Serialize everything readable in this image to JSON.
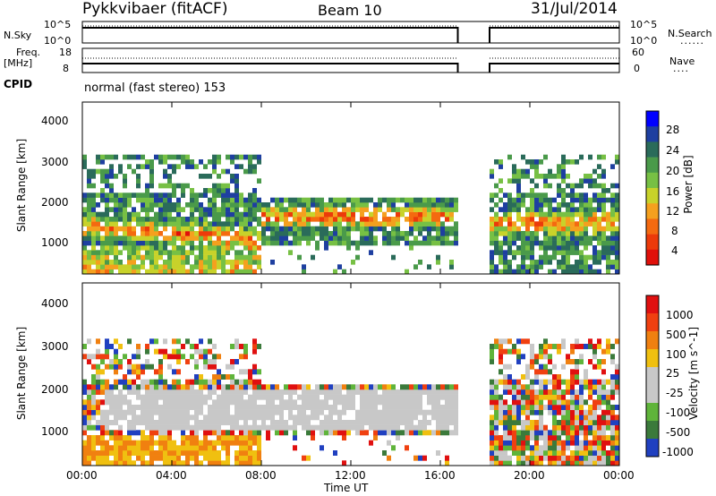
{
  "header": {
    "station": "Pykkvibaer (fitACF)",
    "beam": "Beam 10",
    "date": "31/Jul/2014"
  },
  "strip_labels": {
    "nsky": "N.Sky",
    "nsky_ticks": [
      "10^5",
      "10^0"
    ],
    "nsearch": "N.Search",
    "nsearch_ticks": [
      "10^5",
      "10^0"
    ],
    "freq_line1": "Freq.",
    "freq_line2": "[MHz]",
    "freq_ticks": [
      "18",
      "8"
    ],
    "nave": "Nave",
    "nave_ticks": [
      "60",
      "0"
    ],
    "cpid": "CPID",
    "cpid_value": "normal (fast stereo) 153"
  },
  "colors": {
    "power_scale": [
      "#0000ff",
      "#1e3fa0",
      "#2a6b5a",
      "#4a9a4a",
      "#77c044",
      "#c8d22a",
      "#f5a01e",
      "#f46a10",
      "#ec3a0a",
      "#e0100a"
    ],
    "velocity_scale": [
      "#2040c0",
      "#3b7a3b",
      "#5fb43a",
      "#c8c8c8",
      "#c8c8c8",
      "#f0c010",
      "#f08010",
      "#f04010",
      "#e01010"
    ]
  },
  "chart_data": [
    {
      "type": "heatmap",
      "name": "power",
      "ylabel": "Slant Range [km]",
      "colorbar_label": "Power [dB]",
      "colorbar_ticks": [
        "28",
        "24",
        "20",
        "16",
        "12",
        "8",
        "4"
      ],
      "ylim": [
        180,
        4600
      ],
      "yticks": [
        "4000",
        "3000",
        "2000",
        "1000"
      ],
      "xlim_hours": [
        0,
        24
      ],
      "data_gap_hours": [
        16.9,
        18.2
      ]
    },
    {
      "type": "heatmap",
      "name": "velocity",
      "ylabel": "Slant Range [km]",
      "colorbar_label": "Velocity [m s^-1]",
      "colorbar_ticks": [
        "1000",
        "500",
        "100",
        "25",
        "-25",
        "-100",
        "-500",
        "-1000"
      ],
      "ylim": [
        180,
        4600
      ],
      "yticks": [
        "4000",
        "3000",
        "2000",
        "1000"
      ],
      "xlim_hours": [
        0,
        24
      ],
      "data_gap_hours": [
        16.9,
        18.2
      ]
    }
  ],
  "xaxis": {
    "ticks": [
      "00:00",
      "04:00",
      "08:00",
      "12:00",
      "16:00",
      "20:00",
      "00:00"
    ],
    "label": "Time UT"
  }
}
